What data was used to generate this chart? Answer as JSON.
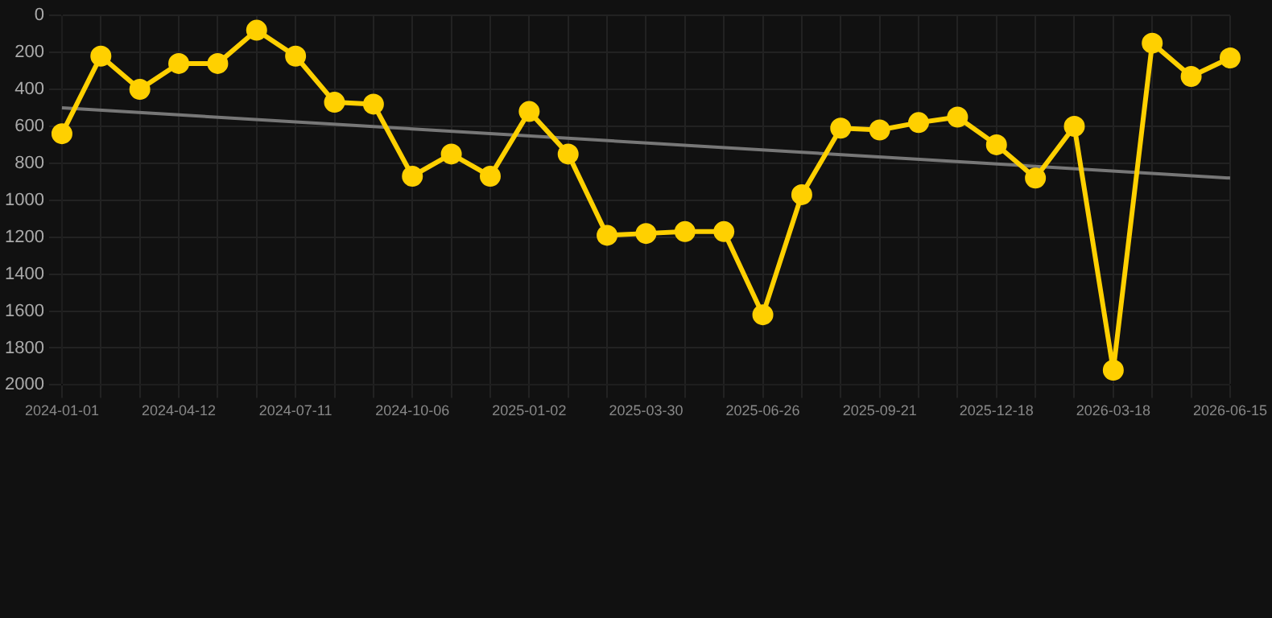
{
  "chart_data": {
    "type": "line",
    "categories": [
      "2024-01-01",
      null,
      null,
      "2024-04-12",
      null,
      null,
      "2024-07-11",
      null,
      null,
      "2024-10-06",
      null,
      null,
      "2025-01-02",
      null,
      null,
      "2025-03-30",
      null,
      null,
      "2025-06-26",
      null,
      null,
      "2025-09-21",
      null,
      null,
      "2025-12-18",
      null,
      null,
      "2026-03-18",
      null,
      null,
      "2026-06-15"
    ],
    "series": [
      {
        "color": "#ffd000",
        "marker": "circle",
        "values": [
          640,
          220,
          400,
          260,
          260,
          80,
          220,
          470,
          480,
          870,
          750,
          870,
          520,
          750,
          1190,
          1180,
          1170,
          1170,
          1620,
          970,
          610,
          620,
          580,
          550,
          700,
          880,
          600,
          1920,
          150,
          330,
          230
        ]
      },
      {
        "type": "line",
        "color": "#777777",
        "marker": "none",
        "values": [
          500,
          null,
          null,
          null,
          null,
          null,
          null,
          null,
          null,
          null,
          null,
          null,
          null,
          null,
          null,
          null,
          null,
          null,
          null,
          null,
          null,
          null,
          null,
          null,
          null,
          null,
          null,
          null,
          null,
          null,
          880
        ]
      }
    ],
    "ylim": [
      2000,
      0
    ],
    "yticks": [
      0,
      200,
      400,
      600,
      800,
      1000,
      1200,
      1400,
      1600,
      1800,
      2000
    ],
    "grid": true
  }
}
